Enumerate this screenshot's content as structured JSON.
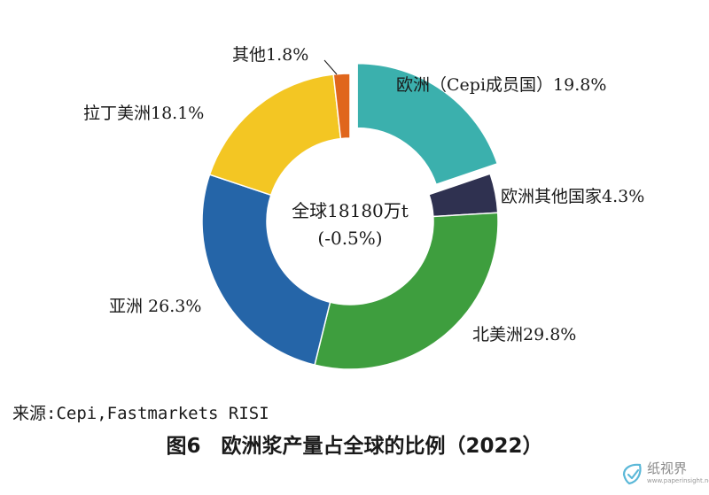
{
  "chart_data": {
    "type": "pie",
    "title": "",
    "center_label": {
      "line1": "全球18180万t",
      "line2": "(-0.5%)"
    },
    "slices": [
      {
        "label": "欧洲（Cepi成员国）19.8%",
        "value": 19.8,
        "color": "#3bb0ad",
        "exploded": true
      },
      {
        "label": "欧洲其他国家4.3%",
        "value": 4.3,
        "color": "#2f3150"
      },
      {
        "label": "北美洲29.8%",
        "value": 29.8,
        "color": "#3e9e3e"
      },
      {
        "label": "亚洲 26.3%",
        "value": 26.3,
        "color": "#2565a8"
      },
      {
        "label": "拉丁美洲18.1%",
        "value": 18.1,
        "color": "#f3c623"
      },
      {
        "label": "其他1.8%",
        "value": 1.8,
        "color": "#e0661c"
      }
    ],
    "legend": "none"
  },
  "source": "来源:Cepi,Fastmarkets RISI",
  "figure_title": "图6　欧洲浆产量占全球的比例（2022）",
  "watermark": {
    "name": "纸视界",
    "url": "www.paperinsight.net",
    "color": "#5bb8d8"
  }
}
